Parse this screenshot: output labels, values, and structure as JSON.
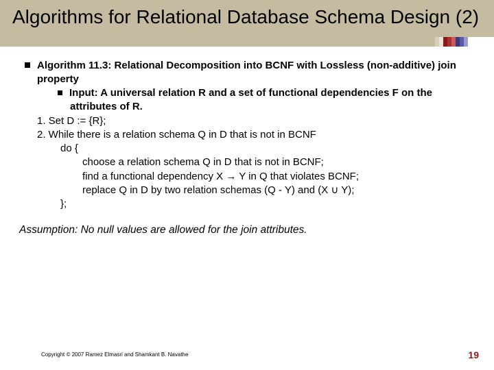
{
  "title": "Algorithms for Relational Database Schema Design (2)",
  "bullets": {
    "main": "Algorithm 11.3: Relational Decomposition into BCNF with Lossless (non-additive) join property",
    "sub": "Input: A universal relation R and a set of functional dependencies F on the attributes of R."
  },
  "steps": {
    "s1": "1. Set D := {R};",
    "s2": "2. While there is a relation schema Q in D that is not in BCNF",
    "do": "do {",
    "l1": "choose a relation schema Q in D that is not in BCNF;",
    "l2": "find a functional dependency X → Y in Q that violates BCNF;",
    "l3": "replace Q in D by two relation schemas (Q - Y) and (X ∪ Y);",
    "close": "};"
  },
  "assumption": "Assumption: No null values are allowed for the join attributes.",
  "footer": "Copyright © 2007 Ramez Elmasri and Shamkant B. Navathe",
  "pagenum": "19"
}
